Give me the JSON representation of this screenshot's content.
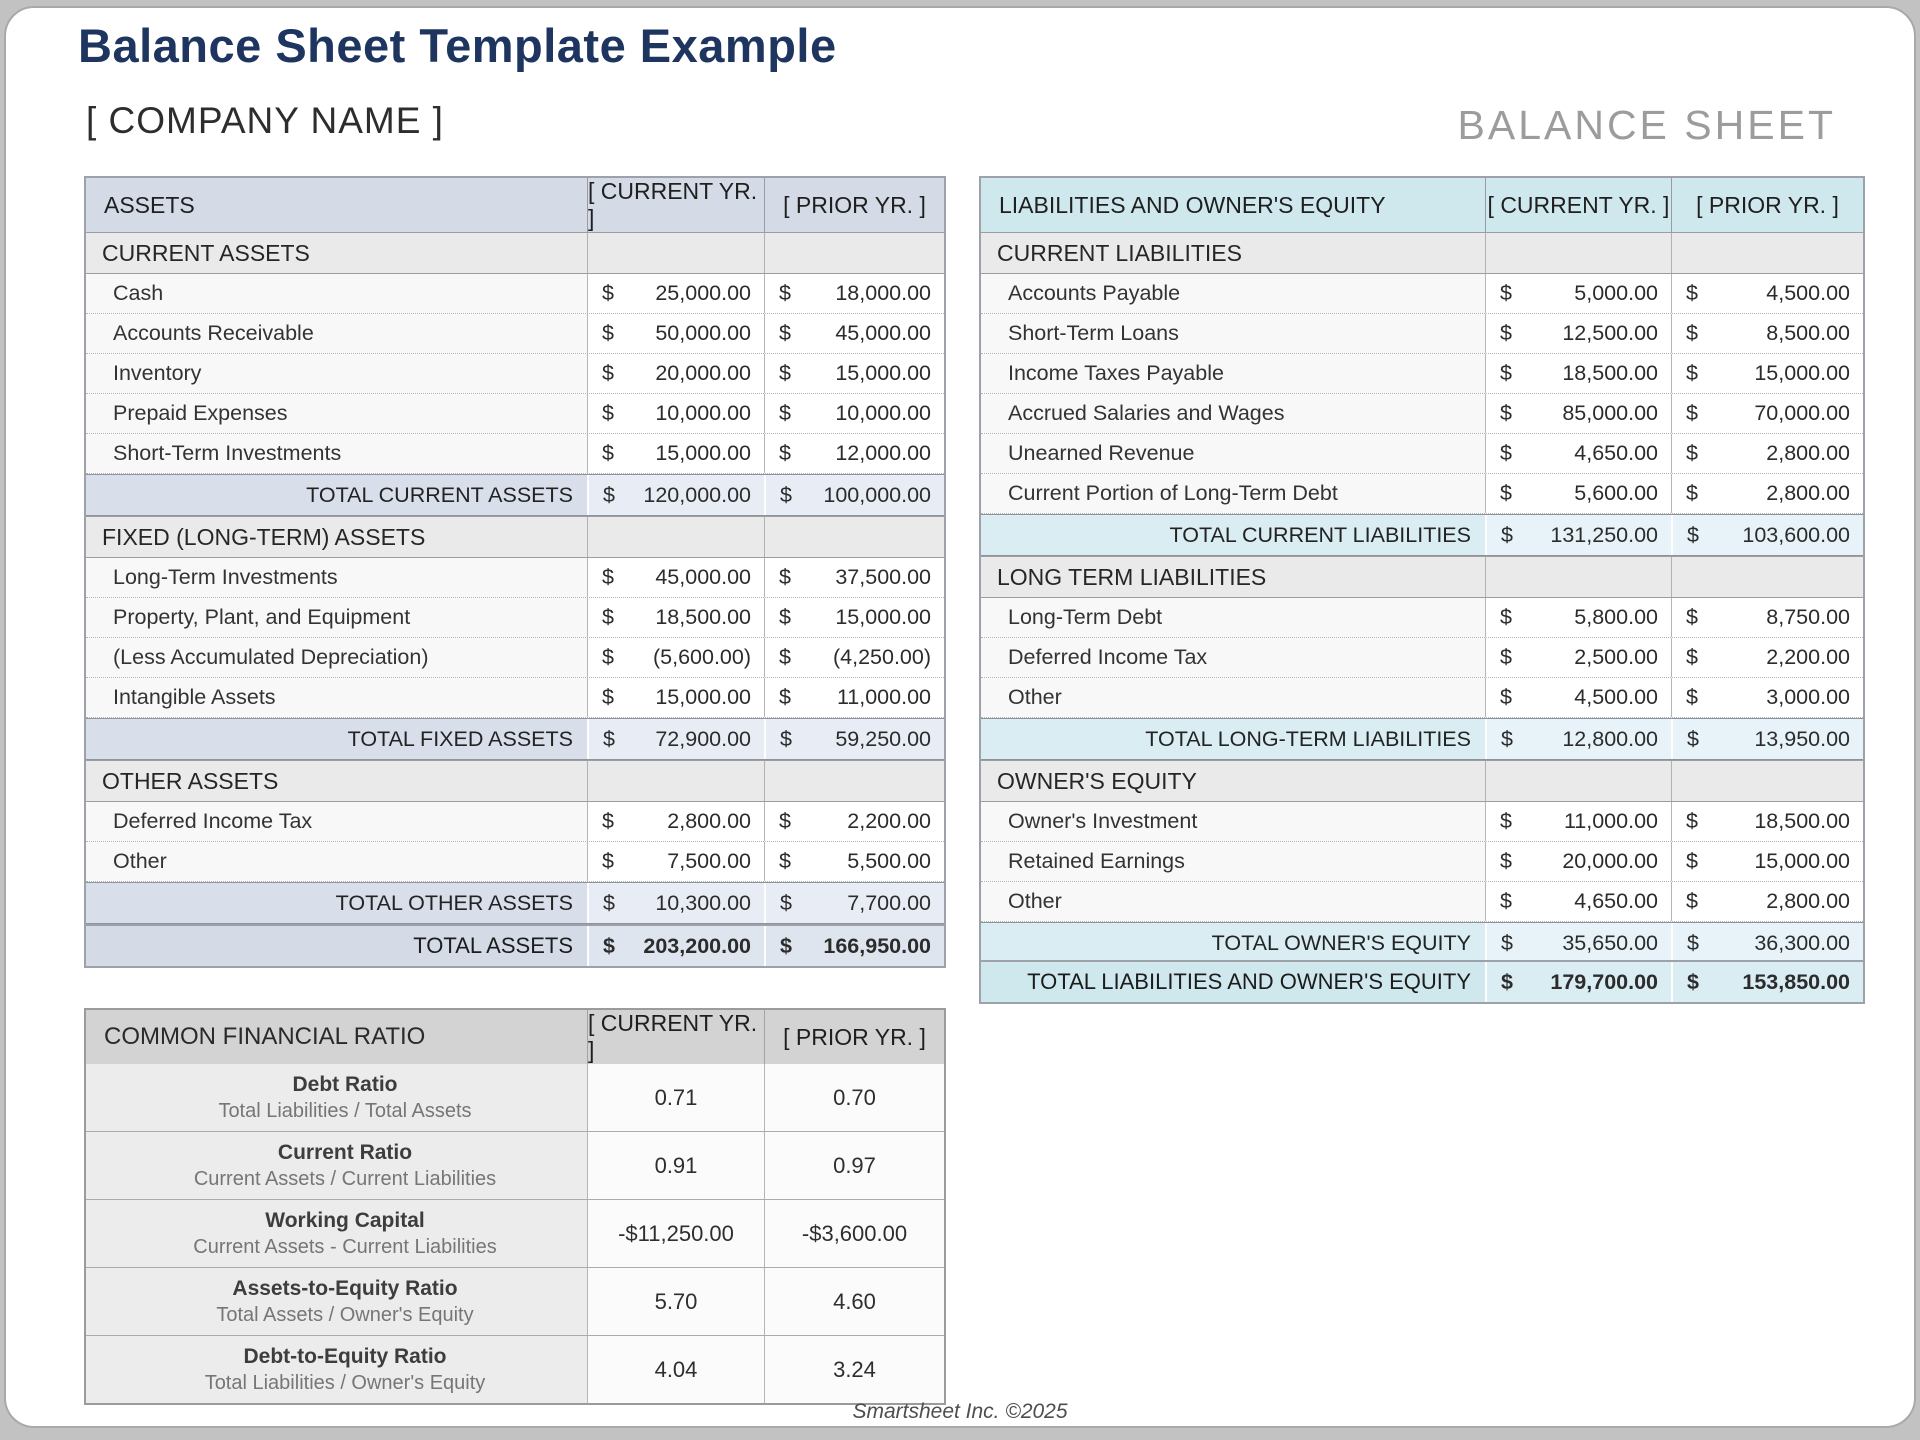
{
  "page": {
    "title": "Balance Sheet Template Example",
    "company_name": "[ COMPANY NAME ]",
    "sheet_label": "BALANCE SHEET",
    "footer": "Smartsheet Inc. ©2025"
  },
  "columns": {
    "current": "[ CURRENT YR. ]",
    "prior": "[ PRIOR YR. ]"
  },
  "currency": "$",
  "colors": {
    "title_navy": "#1e3560",
    "header_blue": "#d4dbe7",
    "header_cyan": "#cfe8ee",
    "section_gray": "#eaeaea",
    "total_blue_label": "#d8deea",
    "total_blue_value": "#e8edf5",
    "total_cyan_label": "#d9edf3",
    "total_cyan_value": "#e7f3f8",
    "grand_blue_value": "#dfe5ef",
    "grand_cyan_value": "#daedf3",
    "ratio_header_gray": "#d3d3d3",
    "ratio_label_bg": "#ececec"
  },
  "assets": {
    "header": "ASSETS",
    "sections": [
      {
        "title": "CURRENT ASSETS",
        "rows": [
          {
            "label": "Cash",
            "current": "25,000.00",
            "prior": "18,000.00"
          },
          {
            "label": "Accounts Receivable",
            "current": "50,000.00",
            "prior": "45,000.00"
          },
          {
            "label": "Inventory",
            "current": "20,000.00",
            "prior": "15,000.00"
          },
          {
            "label": "Prepaid Expenses",
            "current": "10,000.00",
            "prior": "10,000.00"
          },
          {
            "label": "Short-Term Investments",
            "current": "15,000.00",
            "prior": "12,000.00"
          }
        ],
        "total": {
          "label": "TOTAL CURRENT ASSETS",
          "current": "120,000.00",
          "prior": "100,000.00"
        }
      },
      {
        "title": "FIXED (LONG-TERM) ASSETS",
        "rows": [
          {
            "label": "Long-Term Investments",
            "current": "45,000.00",
            "prior": "37,500.00"
          },
          {
            "label": "Property, Plant, and Equipment",
            "current": "18,500.00",
            "prior": "15,000.00"
          },
          {
            "label": "(Less Accumulated Depreciation)",
            "current": "(5,600.00)",
            "prior": "(4,250.00)"
          },
          {
            "label": "Intangible Assets",
            "current": "15,000.00",
            "prior": "11,000.00"
          }
        ],
        "total": {
          "label": "TOTAL FIXED ASSETS",
          "current": "72,900.00",
          "prior": "59,250.00"
        }
      },
      {
        "title": "OTHER ASSETS",
        "rows": [
          {
            "label": "Deferred Income Tax",
            "current": "2,800.00",
            "prior": "2,200.00"
          },
          {
            "label": "Other",
            "current": "7,500.00",
            "prior": "5,500.00"
          }
        ],
        "total": {
          "label": "TOTAL OTHER ASSETS",
          "current": "10,300.00",
          "prior": "7,700.00"
        }
      }
    ],
    "grand_total": {
      "label": "TOTAL ASSETS",
      "current": "203,200.00",
      "prior": "166,950.00"
    }
  },
  "liabilities": {
    "header": "LIABILITIES AND OWNER'S EQUITY",
    "sections": [
      {
        "title": "CURRENT LIABILITIES",
        "rows": [
          {
            "label": "Accounts Payable",
            "current": "5,000.00",
            "prior": "4,500.00"
          },
          {
            "label": "Short-Term Loans",
            "current": "12,500.00",
            "prior": "8,500.00"
          },
          {
            "label": "Income Taxes Payable",
            "current": "18,500.00",
            "prior": "15,000.00"
          },
          {
            "label": "Accrued Salaries and Wages",
            "current": "85,000.00",
            "prior": "70,000.00"
          },
          {
            "label": "Unearned Revenue",
            "current": "4,650.00",
            "prior": "2,800.00"
          },
          {
            "label": "Current Portion of Long-Term Debt",
            "current": "5,600.00",
            "prior": "2,800.00"
          }
        ],
        "total": {
          "label": "TOTAL CURRENT LIABILITIES",
          "current": "131,250.00",
          "prior": "103,600.00"
        }
      },
      {
        "title": "LONG TERM LIABILITIES",
        "rows": [
          {
            "label": "Long-Term Debt",
            "current": "5,800.00",
            "prior": "8,750.00"
          },
          {
            "label": "Deferred Income Tax",
            "current": "2,500.00",
            "prior": "2,200.00"
          },
          {
            "label": "Other",
            "current": "4,500.00",
            "prior": "3,000.00"
          }
        ],
        "total": {
          "label": "TOTAL LONG-TERM LIABILITIES",
          "current": "12,800.00",
          "prior": "13,950.00"
        }
      },
      {
        "title": "OWNER'S EQUITY",
        "rows": [
          {
            "label": "Owner's Investment",
            "current": "11,000.00",
            "prior": "18,500.00"
          },
          {
            "label": "Retained Earnings",
            "current": "20,000.00",
            "prior": "15,000.00"
          },
          {
            "label": "Other",
            "current": "4,650.00",
            "prior": "2,800.00"
          }
        ],
        "total": {
          "label": "TOTAL OWNER'S EQUITY",
          "current": "35,650.00",
          "prior": "36,300.00"
        }
      }
    ],
    "grand_total": {
      "label": "TOTAL LIABILITIES AND OWNER'S EQUITY",
      "current": "179,700.00",
      "prior": "153,850.00"
    }
  },
  "ratios": {
    "header": "COMMON FINANCIAL RATIO",
    "rows": [
      {
        "name": "Debt Ratio",
        "formula": "Total Liabilities / Total Assets",
        "current": "0.71",
        "prior": "0.70"
      },
      {
        "name": "Current Ratio",
        "formula": "Current Assets / Current Liabilities",
        "current": "0.91",
        "prior": "0.97"
      },
      {
        "name": "Working Capital",
        "formula": "Current Assets - Current Liabilities",
        "current": "-$11,250.00",
        "prior": "-$3,600.00"
      },
      {
        "name": "Assets-to-Equity Ratio",
        "formula": "Total Assets / Owner's Equity",
        "current": "5.70",
        "prior": "4.60"
      },
      {
        "name": "Debt-to-Equity Ratio",
        "formula": "Total Liabilities / Owner's Equity",
        "current": "4.04",
        "prior": "3.24"
      }
    ]
  }
}
